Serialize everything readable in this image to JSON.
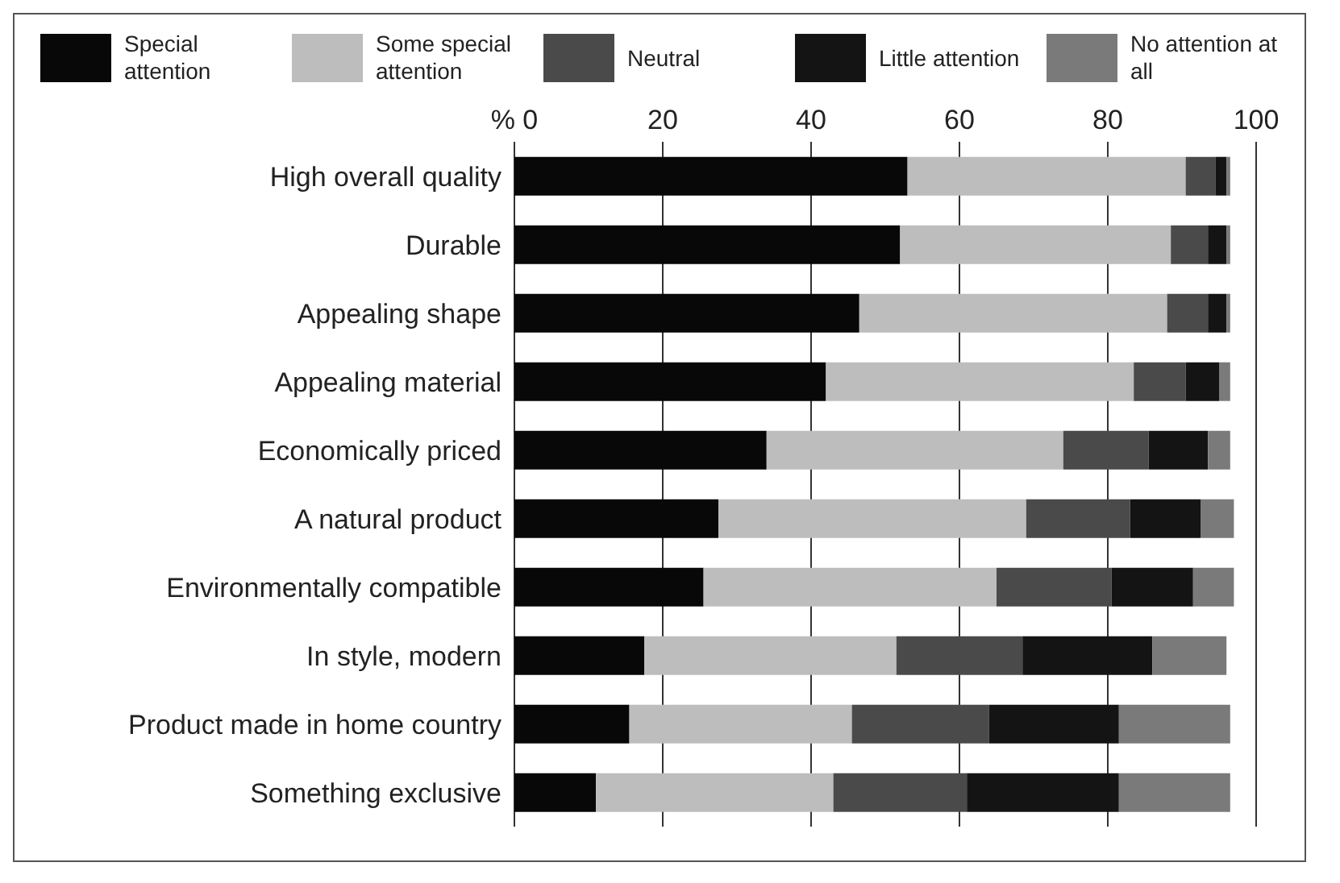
{
  "chart_data": {
    "type": "bar",
    "orientation": "horizontal",
    "stacked": true,
    "categories": [
      "High overall quality",
      "Durable",
      "Appealing shape",
      "Appealing material",
      "Economically priced",
      "A natural product",
      "Environmentally compatible",
      "In style, modern",
      "Product made in home country",
      "Something exclusive"
    ],
    "series": [
      {
        "name": "Special attention",
        "color": "#080808",
        "values": [
          53,
          52,
          46.5,
          42,
          34,
          27.5,
          25.5,
          17.5,
          15.5,
          11
        ]
      },
      {
        "name": "Some special attention",
        "color": "#bdbdbd",
        "values": [
          37.5,
          36.5,
          41.5,
          41.5,
          40,
          41.5,
          39.5,
          34,
          30,
          32
        ]
      },
      {
        "name": "Neutral",
        "color": "#4a4a4a",
        "values": [
          4,
          5,
          5.5,
          7,
          11.5,
          14,
          15.5,
          17,
          18.5,
          18
        ]
      },
      {
        "name": "Little attention",
        "color": "#141414",
        "values": [
          1.5,
          2.5,
          2.5,
          4.5,
          8,
          9.5,
          11,
          17.5,
          17.5,
          20.5
        ]
      },
      {
        "name": "No attention at all",
        "color": "#7a7a7a",
        "values": [
          0.5,
          0.5,
          0.5,
          1.5,
          3,
          4.5,
          5.5,
          10,
          15,
          15
        ]
      }
    ],
    "xlim": [
      0,
      100
    ],
    "xticks": [
      {
        "value": 0,
        "label": "% 0"
      },
      20,
      40,
      60,
      80,
      100
    ],
    "grid": "x",
    "legend": "top"
  }
}
